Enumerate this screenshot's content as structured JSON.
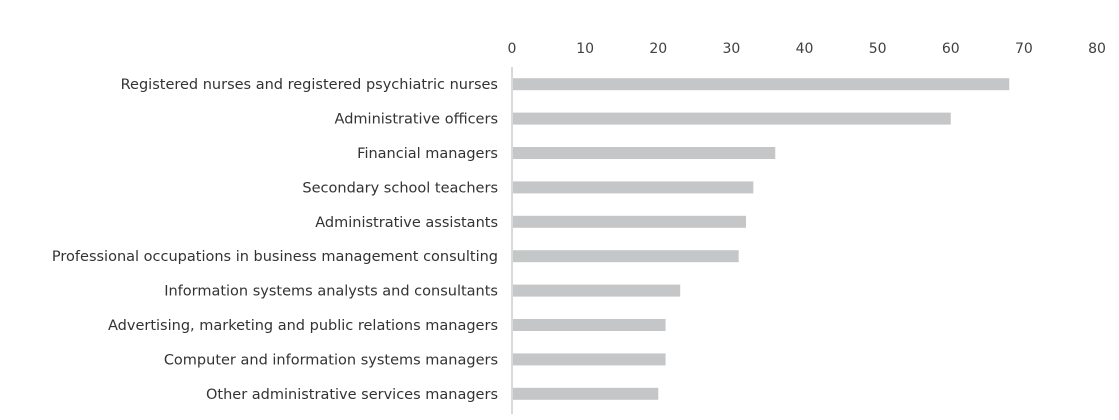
{
  "chart_data": {
    "type": "bar",
    "orientation": "horizontal",
    "title": "",
    "xlabel": "",
    "ylabel": "",
    "xlim": [
      0,
      80
    ],
    "ticks": [
      0,
      10,
      20,
      30,
      40,
      50,
      60,
      70,
      80
    ],
    "tick_position": "top",
    "grid": false,
    "legend": "none",
    "colors": {
      "bar": "#c4c6c8",
      "axis": "#d9d9d9",
      "text": "#333333"
    },
    "categories": [
      "Registered nurses and registered psychiatric nurses",
      "Administrative officers",
      "Financial managers",
      "Secondary school teachers",
      "Administrative assistants",
      "Professional occupations in business management consulting",
      "Information systems analysts and consultants",
      "Advertising, marketing and public relations managers",
      "Computer and information systems managers",
      "Other administrative services managers"
    ],
    "values": [
      68,
      60,
      36,
      33,
      32,
      31,
      23,
      21,
      21,
      20
    ]
  }
}
